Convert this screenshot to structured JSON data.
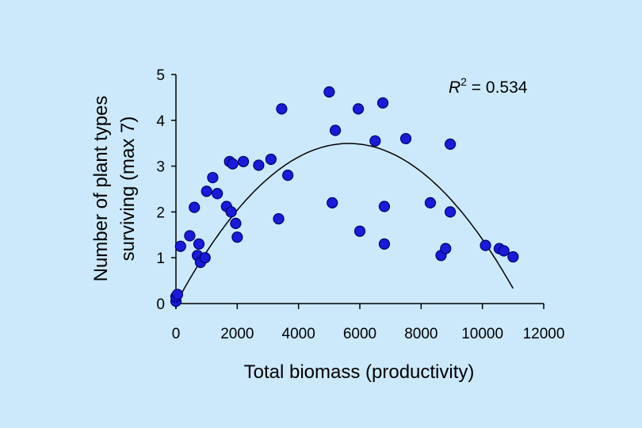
{
  "chart_data": {
    "type": "scatter",
    "title": "",
    "xlabel": "Total biomass (productivity)",
    "ylabel_lines": [
      "Number of plant types",
      "surviving (max 7)"
    ],
    "xlim": [
      0,
      12000
    ],
    "ylim": [
      0,
      5
    ],
    "xticks": [
      0,
      2000,
      4000,
      6000,
      8000,
      10000,
      12000
    ],
    "yticks": [
      0,
      1,
      2,
      3,
      4,
      5
    ],
    "grid": false,
    "annotation": {
      "r_symbol": "R",
      "superscript": "2",
      "text": " = 0.534"
    },
    "marker_color": "#1a1adb",
    "background_color": "#cce9fb",
    "points": [
      {
        "x": 0,
        "y": 0.05
      },
      {
        "x": 0,
        "y": 0.15
      },
      {
        "x": 50,
        "y": 0.2
      },
      {
        "x": 150,
        "y": 1.25
      },
      {
        "x": 450,
        "y": 1.48
      },
      {
        "x": 600,
        "y": 2.1
      },
      {
        "x": 700,
        "y": 1.05
      },
      {
        "x": 750,
        "y": 1.3
      },
      {
        "x": 800,
        "y": 0.9
      },
      {
        "x": 950,
        "y": 1.0
      },
      {
        "x": 1000,
        "y": 2.45
      },
      {
        "x": 1200,
        "y": 2.75
      },
      {
        "x": 1350,
        "y": 2.4
      },
      {
        "x": 1650,
        "y": 2.12
      },
      {
        "x": 1750,
        "y": 3.1
      },
      {
        "x": 1800,
        "y": 2.0
      },
      {
        "x": 1850,
        "y": 3.05
      },
      {
        "x": 1950,
        "y": 1.75
      },
      {
        "x": 2000,
        "y": 1.45
      },
      {
        "x": 2200,
        "y": 3.1
      },
      {
        "x": 2700,
        "y": 3.02
      },
      {
        "x": 3100,
        "y": 3.15
      },
      {
        "x": 3350,
        "y": 1.85
      },
      {
        "x": 3450,
        "y": 4.25
      },
      {
        "x": 3650,
        "y": 2.8
      },
      {
        "x": 5000,
        "y": 4.62
      },
      {
        "x": 5100,
        "y": 2.2
      },
      {
        "x": 5200,
        "y": 3.78
      },
      {
        "x": 5950,
        "y": 4.25
      },
      {
        "x": 6000,
        "y": 1.58
      },
      {
        "x": 6500,
        "y": 3.55
      },
      {
        "x": 6750,
        "y": 4.38
      },
      {
        "x": 6800,
        "y": 2.12
      },
      {
        "x": 6800,
        "y": 1.3
      },
      {
        "x": 7500,
        "y": 3.6
      },
      {
        "x": 8300,
        "y": 2.2
      },
      {
        "x": 8650,
        "y": 1.05
      },
      {
        "x": 8800,
        "y": 1.2
      },
      {
        "x": 8950,
        "y": 2.0
      },
      {
        "x": 8950,
        "y": 3.48
      },
      {
        "x": 10100,
        "y": 1.27
      },
      {
        "x": 10550,
        "y": 1.2
      },
      {
        "x": 10700,
        "y": 1.15
      },
      {
        "x": 11000,
        "y": 1.02
      }
    ],
    "trendline": {
      "type": "quadratic",
      "coefficients": {
        "a": -1.1e-07,
        "b": 0.00124,
        "c": 0.0
      },
      "x_range": [
        0,
        11000
      ]
    }
  }
}
